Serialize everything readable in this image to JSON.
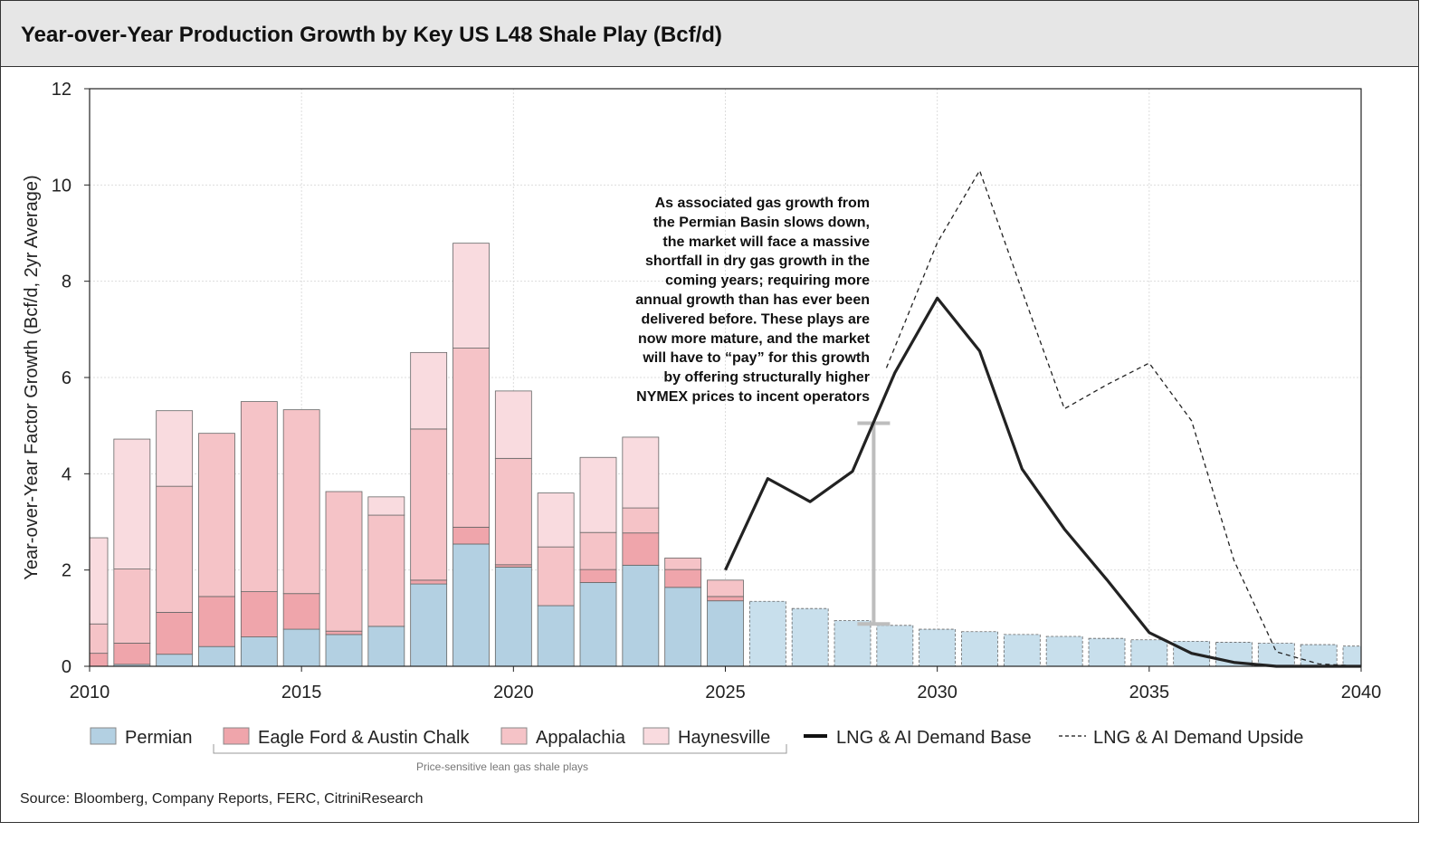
{
  "title": "Year-over-Year Production Growth by Key US L48 Shale Play (Bcf/d)",
  "source": "Source: Bloomberg, Company Reports, FERC, CitriniResearch",
  "colors": {
    "permian": "#b3d0e2",
    "permian_projected": "#c8dfec",
    "eagle_ford": "#efa5ab",
    "appalachia": "#f5c3c7",
    "haynesville": "#f9dbdf",
    "base_line": "#222222",
    "error_bar": "#bdbdbd"
  },
  "chart_data": {
    "type": "bar",
    "stacked": true,
    "ylabel": "Year-over-Year Factor Growth (Bcf/d, 2yr Average)",
    "xlabel": "",
    "xlim": [
      2010,
      2040
    ],
    "ylim": [
      0,
      12
    ],
    "xticks": [
      2010,
      2015,
      2020,
      2025,
      2030,
      2035,
      2040
    ],
    "yticks": [
      0,
      2,
      4,
      6,
      8,
      10,
      12
    ],
    "grid": true,
    "years": [
      2010,
      2011,
      2012,
      2013,
      2014,
      2015,
      2016,
      2017,
      2018,
      2019,
      2020,
      2021,
      2022,
      2023,
      2024,
      2025
    ],
    "series": [
      {
        "name": "Permian",
        "values": [
          0.0,
          0.04,
          0.25,
          0.41,
          0.61,
          0.77,
          0.66,
          0.83,
          1.71,
          2.54,
          2.06,
          1.26,
          1.74,
          2.1,
          1.64,
          1.36
        ]
      },
      {
        "name": "Eagle Ford & Austin Chalk",
        "values": [
          0.27,
          0.44,
          0.87,
          1.04,
          0.94,
          0.74,
          0.07,
          0.0,
          0.08,
          0.35,
          0.05,
          0.0,
          0.27,
          0.67,
          0.37,
          0.09
        ]
      },
      {
        "name": "Appalachia",
        "values": [
          0.61,
          1.54,
          2.62,
          3.39,
          3.95,
          3.82,
          2.9,
          2.31,
          3.14,
          3.72,
          2.21,
          1.22,
          0.77,
          0.52,
          0.24,
          0.34
        ]
      },
      {
        "name": "Haynesville",
        "values": [
          1.79,
          2.7,
          1.57,
          0.0,
          0.0,
          0.0,
          0.0,
          0.38,
          1.59,
          2.18,
          1.4,
          1.12,
          1.56,
          1.47,
          0.0,
          0.0
        ]
      }
    ],
    "projected_permian": {
      "years": [
        2026,
        2027,
        2028,
        2029,
        2030,
        2031,
        2032,
        2033,
        2034,
        2035,
        2036,
        2037,
        2038,
        2039,
        2040
      ],
      "values": [
        1.35,
        1.2,
        0.95,
        0.85,
        0.77,
        0.72,
        0.66,
        0.62,
        0.58,
        0.55,
        0.52,
        0.5,
        0.48,
        0.45,
        0.42
      ]
    },
    "lines": [
      {
        "name": "LNG & AI Demand Base",
        "style": "solid",
        "x": [
          2025,
          2026,
          2027,
          2028,
          2029,
          2030,
          2031,
          2032,
          2033,
          2034,
          2035,
          2036,
          2037,
          2038,
          2039,
          2040
        ],
        "y": [
          2.0,
          3.9,
          3.42,
          4.05,
          6.1,
          7.65,
          6.55,
          4.1,
          2.85,
          1.8,
          0.7,
          0.27,
          0.08,
          0.0,
          0.0,
          0.0
        ]
      },
      {
        "name": "LNG & AI Demand Upside",
        "style": "dashed",
        "x": [
          2028.8,
          2030,
          2031,
          2032,
          2033,
          2034,
          2035,
          2036,
          2037,
          2038,
          2039,
          2040
        ],
        "y": [
          6.2,
          8.8,
          10.3,
          7.8,
          5.35,
          5.85,
          6.3,
          5.1,
          2.2,
          0.3,
          0.05,
          0.0
        ]
      }
    ],
    "error_bar": {
      "x": 2028.5,
      "low": 0.88,
      "high": 5.05
    },
    "annotation": [
      "As associated gas growth from",
      "the Permian Basin slows down,",
      "the market will face a massive",
      "shortfall in dry gas growth in the",
      "coming years; requiring more",
      "annual growth than has ever been",
      "delivered before. These plays are",
      "now more mature, and the market",
      "will have to “pay” for this growth",
      "by offering structurally higher",
      "NYMEX prices to incent operators"
    ],
    "legend": {
      "position": "bottom",
      "items": [
        "Permian",
        "Eagle Ford & Austin Chalk",
        "Appalachia",
        "Haynesville",
        "LNG & AI Demand Base",
        "LNG & AI Demand Upside"
      ],
      "group_label": "Price-sensitive lean gas shale plays"
    }
  }
}
